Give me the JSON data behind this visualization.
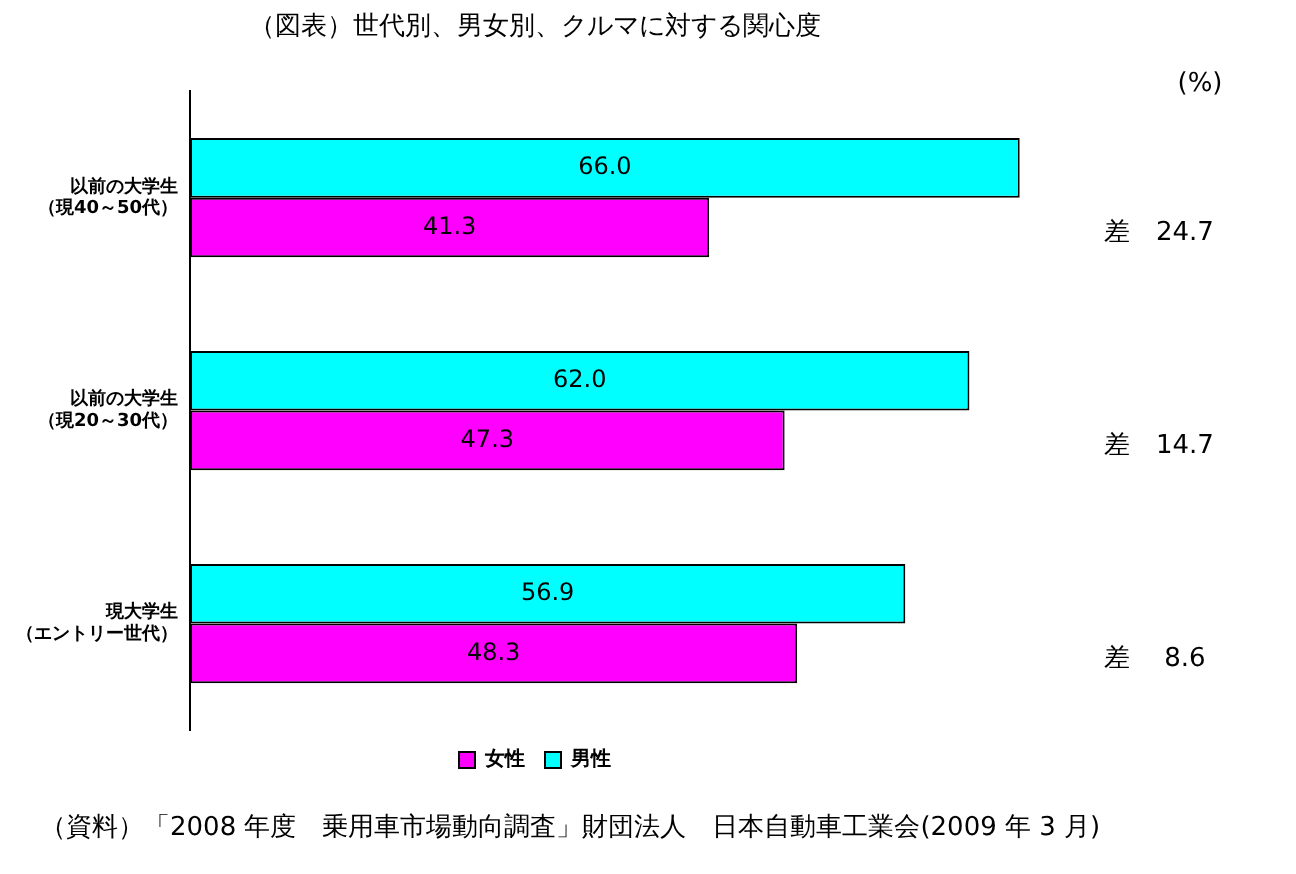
{
  "chart_data": {
    "type": "bar",
    "orientation": "horizontal",
    "title": "（図表）世代別、男女別、クルマに対する関心度",
    "categories": [
      "以前の大学生（現40～50代）",
      "以前の大学生（現20～30代）",
      "現大学生（エントリー世代）"
    ],
    "series": [
      {
        "name": "女性",
        "color": "#ff00ff",
        "values": [
          41.3,
          47.3,
          48.3
        ],
        "value_labels": [
          "41.3",
          "47.3",
          "48.3"
        ]
      },
      {
        "name": "男性",
        "color": "#00ffff",
        "values": [
          66.0,
          62.0,
          56.9
        ],
        "value_labels": [
          "66.0",
          "62.0",
          "56.9"
        ]
      }
    ],
    "tick_labels": "y",
    "legend": "bottom",
    "annotations": [
      "(%)",
      "差　24.7",
      "差　14.7",
      "差　 8.6",
      "（資料）「2008 年度　乗用車市場動向調査」財団法人　日本自動車工業会(2009 年 3 月)"
    ]
  }
}
